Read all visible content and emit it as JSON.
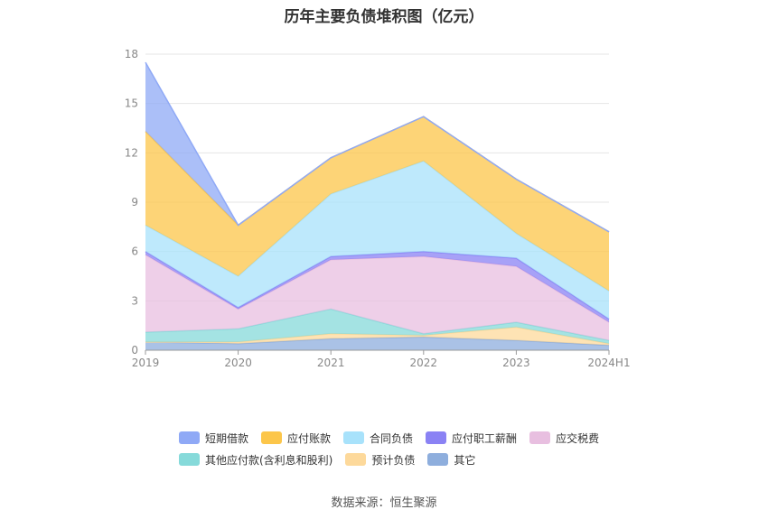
{
  "chart_data": {
    "type": "area",
    "title": "历年主要负债堆积图（亿元）",
    "categories": [
      "2019",
      "2020",
      "2021",
      "2022",
      "2023",
      "2024H1"
    ],
    "yticks": [
      "0",
      "3",
      "6",
      "9",
      "12",
      "15",
      "18"
    ],
    "ylim": [
      0,
      18
    ],
    "grid": true,
    "legend_position": "bottom",
    "series": [
      {
        "name": "其它",
        "color": "#8eaedd",
        "values": [
          0.5,
          0.4,
          0.7,
          0.8,
          0.6,
          0.3
        ]
      },
      {
        "name": "预计负债",
        "color": "#fdd99b",
        "values": [
          0.0,
          0.1,
          0.3,
          0.1,
          0.8,
          0.1
        ]
      },
      {
        "name": "其他应付款(含利息和股利)",
        "color": "#86dada",
        "values": [
          0.6,
          0.8,
          1.5,
          0.1,
          0.3,
          0.2
        ]
      },
      {
        "name": "应交税费",
        "color": "#e8bfe0",
        "values": [
          4.7,
          1.2,
          3.0,
          4.7,
          3.4,
          1.1
        ]
      },
      {
        "name": "应付职工薪酬",
        "color": "#8a82f4",
        "values": [
          0.2,
          0.1,
          0.2,
          0.3,
          0.5,
          0.2
        ]
      },
      {
        "name": "合同负债",
        "color": "#a8e2fb",
        "values": [
          1.6,
          1.9,
          3.8,
          5.5,
          1.5,
          1.7
        ]
      },
      {
        "name": "应付账款",
        "color": "#fcc64a",
        "values": [
          5.7,
          3.1,
          2.2,
          2.7,
          3.3,
          3.6
        ]
      },
      {
        "name": "短期借款",
        "color": "#8fa9f6",
        "values": [
          4.2,
          0.0,
          0.0,
          0.0,
          0.0,
          0.0
        ]
      }
    ],
    "legend": [
      {
        "name": "短期借款",
        "color": "#8fa9f6"
      },
      {
        "name": "应付账款",
        "color": "#fcc64a"
      },
      {
        "name": "合同负债",
        "color": "#a8e2fb"
      },
      {
        "name": "应付职工薪酬",
        "color": "#8a82f4"
      },
      {
        "name": "应交税费",
        "color": "#e8bfe0"
      },
      {
        "name": "其他应付款(含利息和股利)",
        "color": "#86dada"
      },
      {
        "name": "预计负债",
        "color": "#fdd99b"
      },
      {
        "name": "其它",
        "color": "#8eaedd"
      }
    ]
  },
  "footer": {
    "source": "数据来源：恒生聚源"
  }
}
